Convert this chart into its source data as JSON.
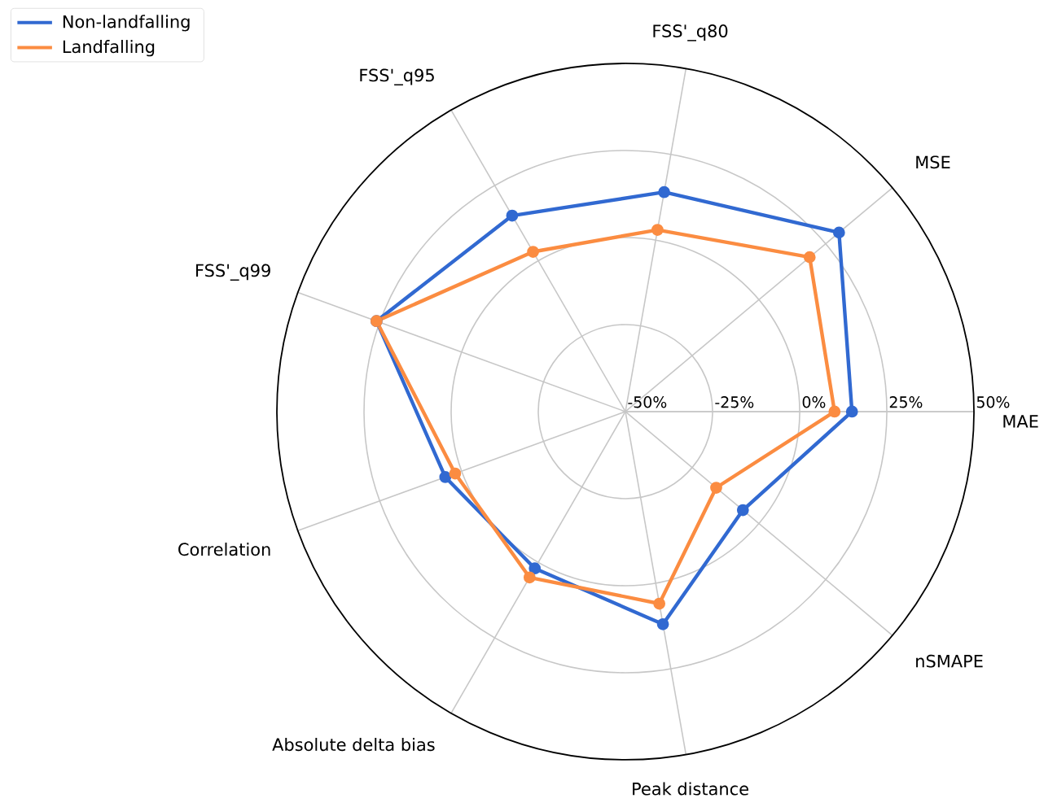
{
  "chart_data": {
    "type": "radar",
    "categories": [
      "FSS'_q80",
      "MSE",
      "MAE",
      "nSMAPE",
      "Peak distance",
      "Absolute delta bias",
      "Correlation",
      "FSS'_q99",
      "FSS'_q95"
    ],
    "series": [
      {
        "name": "Non-landfalling",
        "color": "#3169d1",
        "values": [
          14,
          30,
          15,
          -6,
          12,
          2,
          5,
          26,
          15
        ]
      },
      {
        "name": "Landfalling",
        "color": "#fb8c41",
        "values": [
          3,
          19,
          10,
          -16,
          6,
          5,
          2,
          26,
          3
        ]
      }
    ],
    "ylim": [
      -50,
      50
    ],
    "yticks": [
      {
        "value": -50,
        "label": "-50%"
      },
      {
        "value": -25,
        "label": "-25%"
      },
      {
        "value": 0,
        "label": "0%"
      },
      {
        "value": 25,
        "label": "25%"
      },
      {
        "value": 50,
        "label": "50%"
      }
    ],
    "grid": true,
    "legend": "top left",
    "marker": "circle"
  }
}
